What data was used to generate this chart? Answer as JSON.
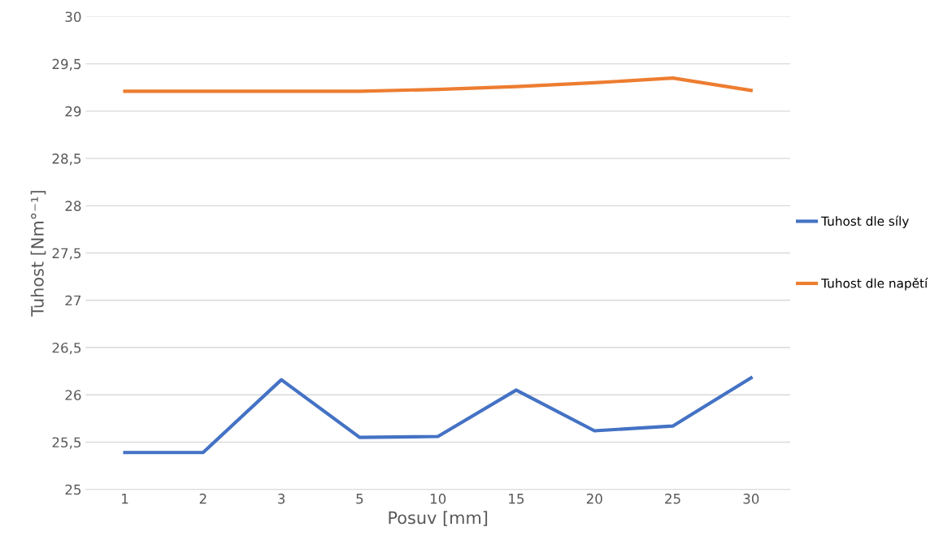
{
  "chart_data": {
    "type": "line",
    "xlabel": "Posuv [mm]",
    "ylabel": "Tuhost [Nm°⁻¹]",
    "categories": [
      "1",
      "2",
      "3",
      "5",
      "10",
      "15",
      "20",
      "25",
      "30"
    ],
    "series": [
      {
        "name": "Tuhost dle síly",
        "color": "#4472c4",
        "values": [
          25.39,
          25.39,
          26.16,
          25.55,
          25.56,
          26.05,
          25.62,
          25.67,
          26.18
        ]
      },
      {
        "name": "Tuhost dle napětí",
        "color": "#ed7d31",
        "values": [
          29.21,
          29.21,
          29.21,
          29.21,
          29.23,
          29.26,
          29.3,
          29.35,
          29.22
        ]
      }
    ],
    "ylim": [
      25,
      30
    ],
    "yticks": [
      25,
      {
        "value": 25.5,
        "label": "25,5"
      },
      26,
      {
        "value": 26.5,
        "label": "26,5"
      },
      27,
      {
        "value": 27.5,
        "label": "27,5"
      },
      28,
      {
        "value": 28.5,
        "label": "28,5"
      },
      29,
      {
        "value": 29.5,
        "label": "29,5"
      },
      30
    ],
    "grid": "y",
    "legend": "right",
    "marker": "none",
    "line_style": "solid"
  }
}
